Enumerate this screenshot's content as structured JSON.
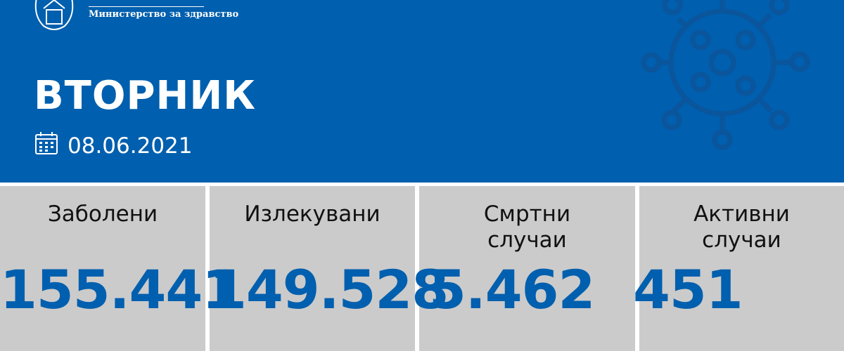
{
  "header": {
    "ministry": "Министерство за здравство",
    "day": "ВТОРНИК",
    "date": "08.06.2021",
    "bg_color": "#005fae"
  },
  "cards": [
    {
      "label": "Заболени",
      "value": "155.441"
    },
    {
      "label": "Излекувани",
      "value": "149.528"
    },
    {
      "label": "Смртни случаи",
      "value": "5.462"
    },
    {
      "label": "Активни случаи",
      "value": "451"
    }
  ]
}
